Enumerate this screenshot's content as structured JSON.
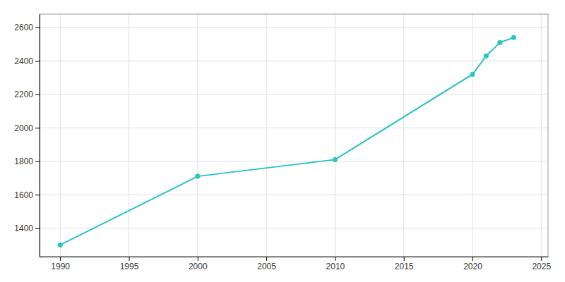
{
  "chart_data": {
    "type": "line",
    "x": [
      1990,
      2000,
      2010,
      2020,
      2021,
      2022,
      2023
    ],
    "values": [
      1300,
      1710,
      1810,
      2320,
      2430,
      2510,
      2540
    ],
    "color": "#29c4c0",
    "marker": "circle",
    "xlim": [
      1988.5,
      2025.5
    ],
    "ylim": [
      1230,
      2680
    ],
    "xticks": [
      1990,
      1995,
      2000,
      2005,
      2010,
      2015,
      2020,
      2025
    ],
    "yticks": [
      1400,
      1600,
      1800,
      2000,
      2200,
      2400,
      2600
    ],
    "grid": true
  }
}
